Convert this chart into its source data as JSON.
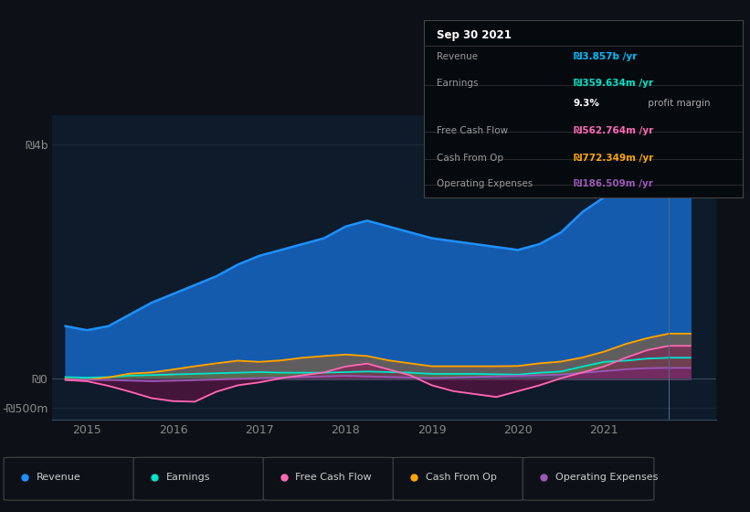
{
  "bg_color": "#0d1117",
  "plot_bg_color": "#0d1b2a",
  "tooltip_title": "Sep 30 2021",
  "tooltip_rows": [
    {
      "label": "Revenue",
      "value": "₪3.857b /yr",
      "value_color": "#00bfff",
      "divider_below": true
    },
    {
      "label": "Earnings",
      "value": "₪359.634m /yr",
      "value_color": "#00e5cc",
      "divider_below": false
    },
    {
      "label": "",
      "value": "9.3%",
      "value_color": "#ffffff",
      "suffix": " profit margin",
      "suffix_color": "#aaaaaa",
      "divider_below": true
    },
    {
      "label": "Free Cash Flow",
      "value": "₪562.764m /yr",
      "value_color": "#ff69b4",
      "divider_below": true
    },
    {
      "label": "Cash From Op",
      "value": "₪772.349m /yr",
      "value_color": "#ffa500",
      "divider_below": true
    },
    {
      "label": "Operating Expenses",
      "value": "₪186.509m /yr",
      "value_color": "#9b59b6",
      "divider_below": false
    }
  ],
  "legend_items": [
    {
      "label": "Revenue",
      "color": "#1e90ff"
    },
    {
      "label": "Earnings",
      "color": "#00e5cc"
    },
    {
      "label": "Free Cash Flow",
      "color": "#ff69b4"
    },
    {
      "label": "Cash From Op",
      "color": "#ffa500"
    },
    {
      "label": "Operating Expenses",
      "color": "#9b59b6"
    }
  ],
  "ytick_labels": [
    "₪4b",
    "₪0",
    "-₪500m"
  ],
  "ytick_values": [
    4000,
    0,
    -500
  ],
  "xtick_values": [
    2015,
    2016,
    2017,
    2018,
    2019,
    2020,
    2021
  ],
  "ylim": [
    -700,
    4500
  ],
  "xlim": [
    2014.6,
    2022.3
  ],
  "revenue_x": [
    2014.75,
    2015.0,
    2015.25,
    2015.5,
    2015.75,
    2016.0,
    2016.25,
    2016.5,
    2016.75,
    2017.0,
    2017.25,
    2017.5,
    2017.75,
    2018.0,
    2018.25,
    2018.5,
    2018.75,
    2019.0,
    2019.25,
    2019.5,
    2019.75,
    2020.0,
    2020.25,
    2020.5,
    2020.75,
    2021.0,
    2021.25,
    2021.5,
    2021.75,
    2022.0
  ],
  "revenue_y": [
    900,
    830,
    900,
    1100,
    1300,
    1450,
    1600,
    1750,
    1950,
    2100,
    2200,
    2300,
    2400,
    2600,
    2700,
    2600,
    2500,
    2400,
    2350,
    2300,
    2250,
    2200,
    2300,
    2500,
    2850,
    3100,
    3400,
    3700,
    3857,
    3857
  ],
  "earnings_x": [
    2014.75,
    2015.0,
    2015.25,
    2015.5,
    2015.75,
    2016.0,
    2016.25,
    2016.5,
    2016.75,
    2017.0,
    2017.25,
    2017.5,
    2017.75,
    2018.0,
    2018.25,
    2018.5,
    2018.75,
    2019.0,
    2019.25,
    2019.5,
    2019.75,
    2020.0,
    2020.25,
    2020.5,
    2020.75,
    2021.0,
    2021.25,
    2021.5,
    2021.75,
    2022.0
  ],
  "earnings_y": [
    30,
    20,
    30,
    55,
    65,
    75,
    85,
    95,
    105,
    115,
    105,
    105,
    105,
    115,
    125,
    115,
    105,
    85,
    85,
    85,
    78,
    72,
    105,
    125,
    210,
    290,
    310,
    345,
    360,
    360
  ],
  "fcf_x": [
    2014.75,
    2015.0,
    2015.25,
    2015.5,
    2015.75,
    2016.0,
    2016.25,
    2016.5,
    2016.75,
    2017.0,
    2017.25,
    2017.5,
    2017.75,
    2018.0,
    2018.25,
    2018.5,
    2018.75,
    2019.0,
    2019.25,
    2019.5,
    2019.75,
    2020.0,
    2020.25,
    2020.5,
    2020.75,
    2021.0,
    2021.25,
    2021.5,
    2021.75,
    2022.0
  ],
  "fcf_y": [
    -20,
    -40,
    -120,
    -220,
    -330,
    -380,
    -390,
    -220,
    -110,
    -60,
    10,
    60,
    110,
    210,
    260,
    160,
    60,
    -110,
    -210,
    -260,
    -310,
    -210,
    -110,
    10,
    110,
    210,
    360,
    490,
    563,
    563
  ],
  "cop_x": [
    2014.75,
    2015.0,
    2015.25,
    2015.5,
    2015.75,
    2016.0,
    2016.25,
    2016.5,
    2016.75,
    2017.0,
    2017.25,
    2017.5,
    2017.75,
    2018.0,
    2018.25,
    2018.5,
    2018.75,
    2019.0,
    2019.25,
    2019.5,
    2019.75,
    2020.0,
    2020.25,
    2020.5,
    2020.75,
    2021.0,
    2021.25,
    2021.5,
    2021.75,
    2022.0
  ],
  "cop_y": [
    0,
    -15,
    25,
    90,
    110,
    160,
    215,
    265,
    310,
    290,
    315,
    360,
    390,
    415,
    390,
    315,
    265,
    215,
    215,
    215,
    215,
    220,
    265,
    295,
    365,
    465,
    595,
    695,
    772,
    772
  ],
  "opex_x": [
    2014.75,
    2015.0,
    2015.25,
    2015.5,
    2015.75,
    2016.0,
    2016.25,
    2016.5,
    2016.75,
    2017.0,
    2017.25,
    2017.5,
    2017.75,
    2018.0,
    2018.25,
    2018.5,
    2018.75,
    2019.0,
    2019.25,
    2019.5,
    2019.75,
    2020.0,
    2020.25,
    2020.5,
    2020.75,
    2021.0,
    2021.25,
    2021.5,
    2021.75,
    2022.0
  ],
  "opex_y": [
    -10,
    -15,
    -20,
    -30,
    -40,
    -32,
    -22,
    -12,
    2,
    12,
    22,
    32,
    42,
    52,
    42,
    32,
    22,
    12,
    22,
    32,
    42,
    52,
    62,
    72,
    102,
    132,
    162,
    182,
    186,
    186
  ],
  "revenue_fill_color": "#1565c0",
  "revenue_line_color": "#1e90ff",
  "earnings_fill_color": "#00897b",
  "earnings_line_color": "#00e5cc",
  "fcf_fill_color": "#880e4f",
  "fcf_line_color": "#ff69b4",
  "cop_fill_color": "#bf6000",
  "cop_line_color": "#ffa500",
  "opex_fill_color": "#6a1b9a",
  "opex_line_color": "#9b59b6",
  "zero_line_color": "#3a4a5a",
  "grid_color": "#1e2d3d",
  "vline_x": 2021.75,
  "vline_color": "#4a6a8a"
}
